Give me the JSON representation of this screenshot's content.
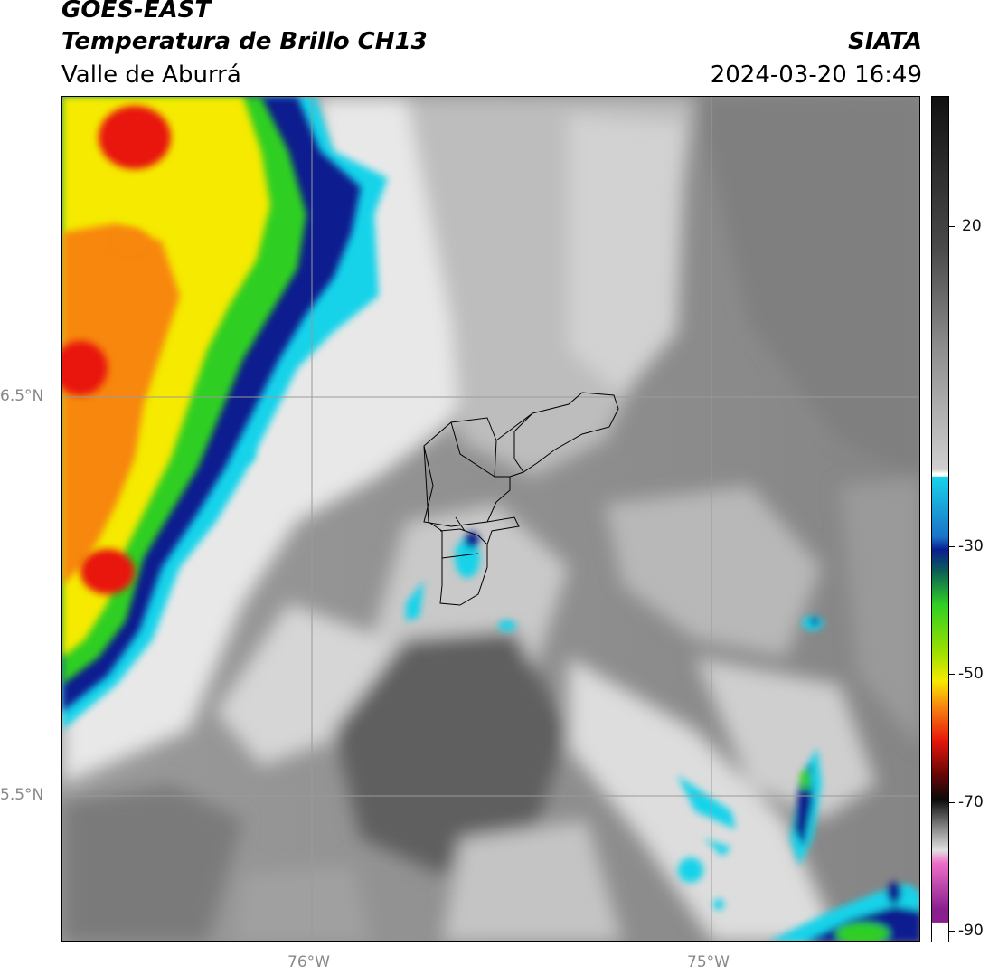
{
  "header": {
    "satellite": "GOES-EAST",
    "product": "Temperatura de Brillo CH13",
    "region": "Valle de Aburrá",
    "brand": "SIATA",
    "datetime": "2024-03-20 16:49"
  },
  "map": {
    "lat_labels": [
      "6.5°N",
      "5.5°N"
    ],
    "lon_labels": [
      "76°W",
      "75°W"
    ],
    "gridlines": true,
    "overlay": "Valle de Aburrá municipal boundaries"
  },
  "colorbar": {
    "ticks": [
      "20",
      "-30",
      "-50",
      "-70",
      "-90"
    ],
    "colors": {
      "cold_top": "#ffffff",
      "purple": "#8a1f8f",
      "pink": "#ee6fc9",
      "dark": "#0a0a0a",
      "red": "#e8170b",
      "orange": "#f7870f",
      "yellow": "#f5ea00",
      "green": "#2fcf24",
      "teal": "#0b5e56",
      "navy": "#0a1f8f",
      "blue": "#1a72c8",
      "cyan": "#19d3ea",
      "white": "#ffffff",
      "light_gray": "#cfcfcf",
      "mid_gray": "#8f8f8f",
      "dark_gray": "#4a4a4a",
      "black": "#111111"
    }
  }
}
